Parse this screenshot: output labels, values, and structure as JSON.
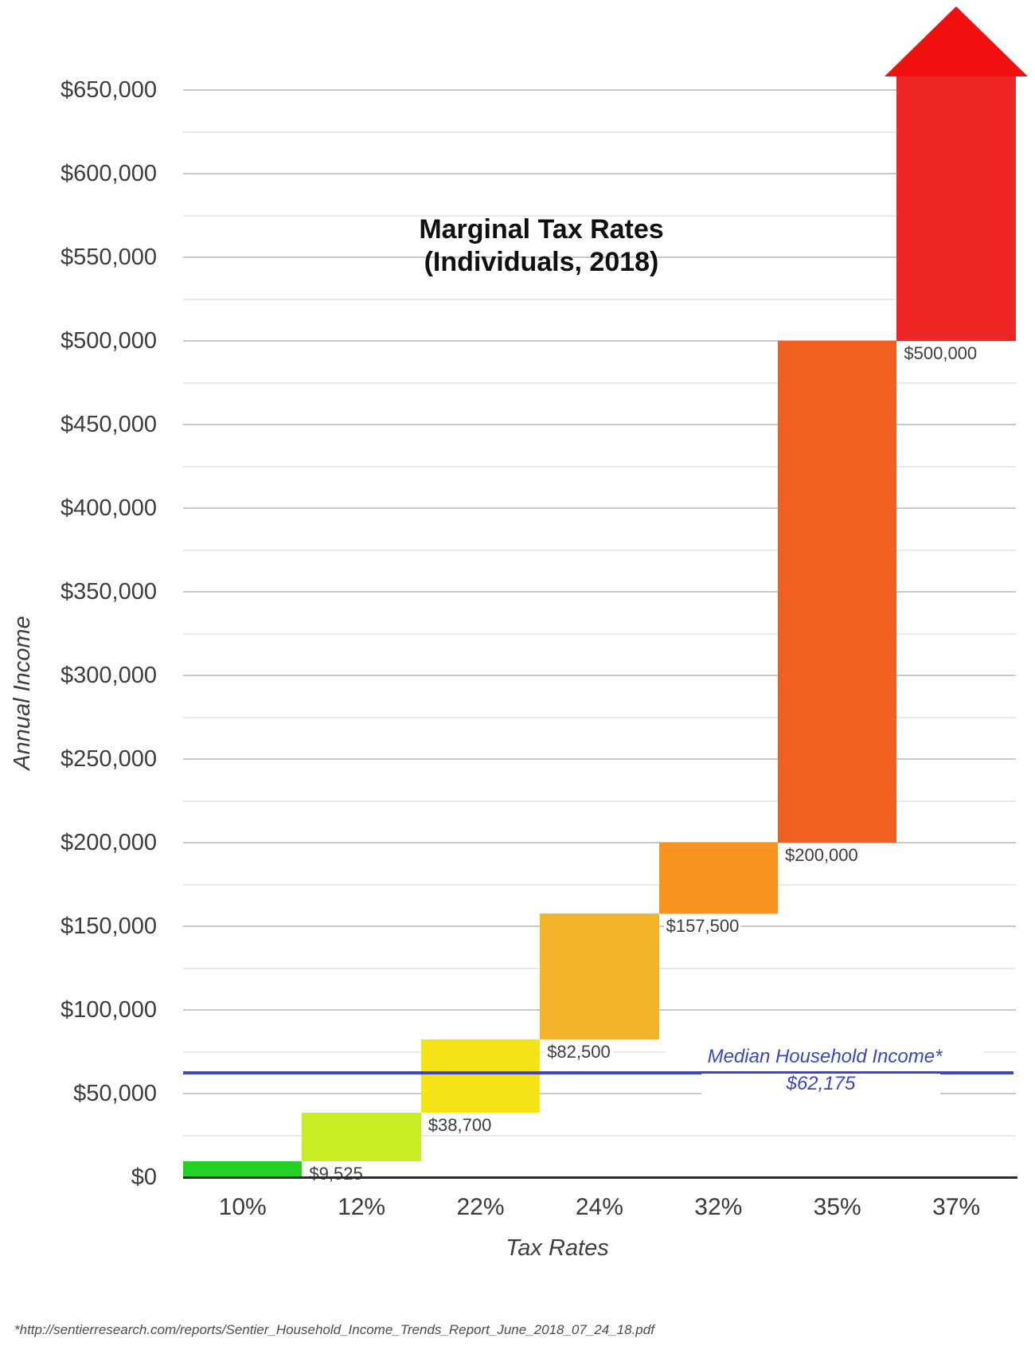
{
  "title_lines": [
    "Marginal Tax Rates",
    "(Individuals, 2018)"
  ],
  "axis_titles": {
    "x": "Tax Rates",
    "y": "Annual Income"
  },
  "footnote": "*http://sentierresearch.com/reports/Sentier_Household_Income_Trends_Report_June_2018_07_24_18.pdf",
  "colors": {
    "median_blue": "#3a46c2",
    "grid_major": "#c9c9c9",
    "grid_minor": "#eaeaea",
    "axis_black": "#2b2b2b",
    "tick_text": "#3d3d3d"
  },
  "chart_data": {
    "type": "bar",
    "subtype": "stepped-tax-bracket-waterfall",
    "title": "Marginal Tax Rates (Individuals, 2018)",
    "xlabel": "Tax Rates",
    "ylabel": "Annual Income",
    "categories": [
      "10%",
      "12%",
      "22%",
      "24%",
      "32%",
      "35%",
      "37%"
    ],
    "series": [
      {
        "rate": "10%",
        "lower": 0,
        "upper": 9525,
        "color": "#23d123",
        "open_ended": false
      },
      {
        "rate": "12%",
        "lower": 9525,
        "upper": 38700,
        "color": "#c9ee25",
        "open_ended": false
      },
      {
        "rate": "22%",
        "lower": 38700,
        "upper": 82500,
        "color": "#f6e315",
        "open_ended": false
      },
      {
        "rate": "24%",
        "lower": 82500,
        "upper": 157500,
        "color": "#f3b32a",
        "open_ended": false
      },
      {
        "rate": "32%",
        "lower": 157500,
        "upper": 200000,
        "color": "#f6941e",
        "open_ended": false
      },
      {
        "rate": "35%",
        "lower": 200000,
        "upper": 500000,
        "color": "#f2601f",
        "open_ended": false
      },
      {
        "rate": "37%",
        "lower": 500000,
        "upper": null,
        "color": "#ee2626",
        "arrow_color": "#f01010",
        "open_ended": true
      }
    ],
    "boundary_labels": [
      "$9,525",
      "$38,700",
      "$82,500",
      "$157,500",
      "$200,000",
      "$500,000"
    ],
    "y_ticks": [
      "$0",
      "$50,000",
      "$100,000",
      "$150,000",
      "$200,000",
      "$250,000",
      "$300,000",
      "$350,000",
      "$400,000",
      "$450,000",
      "$500,000",
      "$550,000",
      "$600,000",
      "$650,000"
    ],
    "ylim": [
      0,
      650000
    ],
    "y_major_step": 50000,
    "y_minor_step": 25000,
    "grid": true,
    "legend": null,
    "reference_line": {
      "label": "Median Household Income*",
      "value": 62175,
      "value_label": "$62,175"
    }
  }
}
